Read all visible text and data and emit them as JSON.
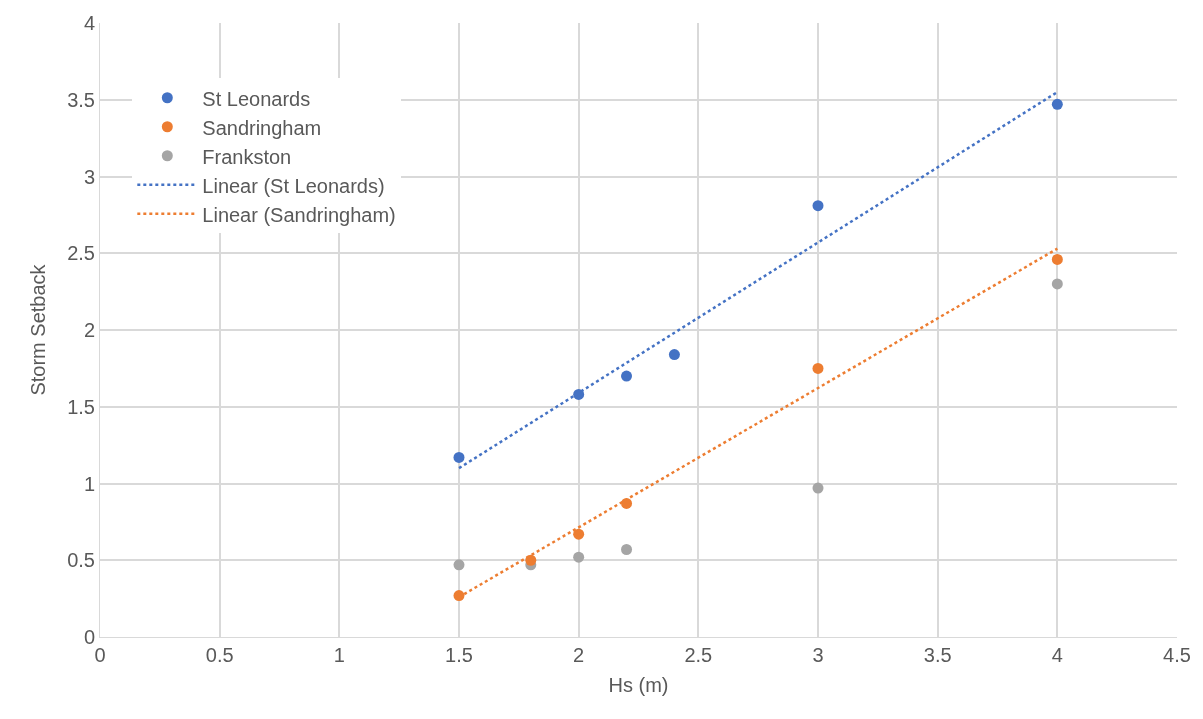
{
  "chart_data": {
    "type": "scatter",
    "xlabel": "Hs (m)",
    "ylabel": "Storm Setback",
    "xlim": [
      0,
      4.5
    ],
    "xticks": [
      0,
      0.5,
      1,
      1.5,
      2,
      2.5,
      3,
      3.5,
      4,
      4.5
    ],
    "ylim": [
      0,
      4
    ],
    "yticks": [
      0,
      0.5,
      1,
      1.5,
      2,
      2.5,
      3,
      3.5,
      4
    ],
    "grid": true,
    "legend": "top left",
    "marker": "circle",
    "series": [
      {
        "name": "St Leonards",
        "color": "#4472c4",
        "x": [
          1.5,
          2,
          2.2,
          2.4,
          3,
          4
        ],
        "values": [
          1.17,
          1.58,
          1.7,
          1.84,
          2.81,
          3.47
        ]
      },
      {
        "name": "Sandringham",
        "color": "#ed7d31",
        "x": [
          1.5,
          1.8,
          2,
          2.2,
          3,
          4
        ],
        "values": [
          0.27,
          0.5,
          0.67,
          0.87,
          1.75,
          2.46
        ]
      },
      {
        "name": "Frankston",
        "color": "#a5a5a5",
        "x": [
          1.5,
          1.8,
          2,
          2.2,
          3,
          4
        ],
        "values": [
          0.47,
          0.47,
          0.52,
          0.57,
          0.97,
          2.3
        ]
      },
      {
        "name": "Linear (St Leonards)",
        "type": "line",
        "marker": "none",
        "line_style": "dotted",
        "color": "#4472c4",
        "x": [
          1.5,
          4
        ],
        "values": [
          1.1,
          3.55
        ]
      },
      {
        "name": "Linear (Sandringham)",
        "type": "line",
        "marker": "none",
        "line_style": "dotted",
        "color": "#ed7d31",
        "x": [
          1.5,
          4
        ],
        "values": [
          0.26,
          2.53
        ]
      }
    ]
  }
}
